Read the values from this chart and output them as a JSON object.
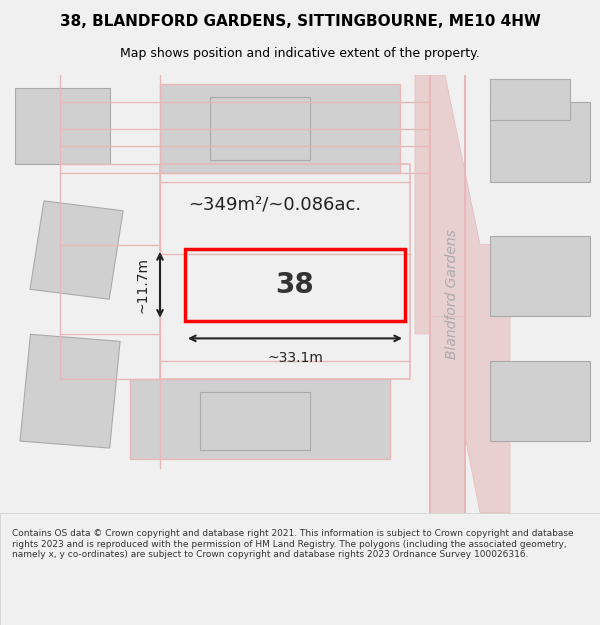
{
  "title_line1": "38, BLANDFORD GARDENS, SITTINGBOURNE, ME10 4HW",
  "title_line2": "Map shows position and indicative extent of the property.",
  "footer_text": "Contains OS data © Crown copyright and database right 2021. This information is subject to Crown copyright and database rights 2023 and is reproduced with the permission of HM Land Registry. The polygons (including the associated geometry, namely x, y co-ordinates) are subject to Crown copyright and database rights 2023 Ordnance Survey 100026316.",
  "bg_color": "#f5f5f5",
  "map_bg_color": "#ffffff",
  "road_color": "#e8b8b8",
  "building_color": "#d0d0d0",
  "building_edge_color": "#aaaaaa",
  "highlight_color": "#ff0000",
  "dim_line_color": "#222222",
  "street_label": "Blandford Gardens",
  "area_label": "~349m²/~0.086ac.",
  "width_label": "~33.1m",
  "height_label": "~11.7m",
  "plot_number": "38"
}
